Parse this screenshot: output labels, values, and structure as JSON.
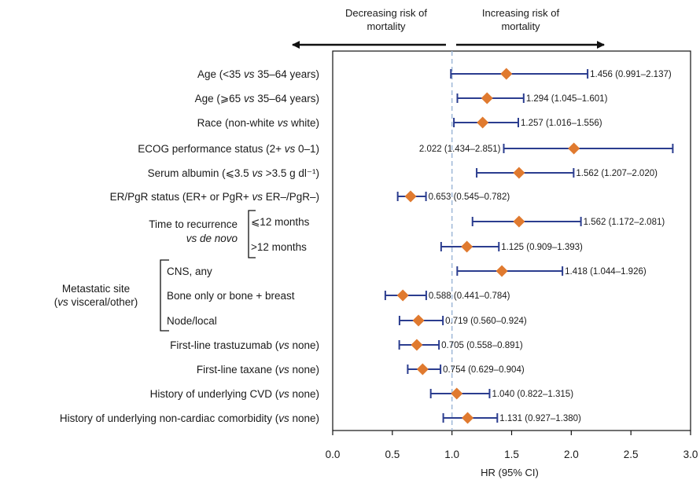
{
  "chart_data": {
    "type": "forest",
    "xlabel": "HR (95% CI)",
    "xlim": [
      0,
      3.0
    ],
    "xticks": [
      "0.0",
      "0.5",
      "1.0",
      "1.5",
      "2.0",
      "2.5",
      "3.0"
    ],
    "reference_line": 1.0,
    "direction_left": [
      "Decreasing risk of",
      "mortality"
    ],
    "direction_right": [
      "Increasing risk of",
      "mortality"
    ],
    "colors": {
      "marker": "#e07a2f",
      "ci_line": "#2b3d8f",
      "reference": "#9fb8d8"
    },
    "rows": [
      {
        "label": "Age (<35 ",
        "label_italic": "vs",
        "label_rest": " 35–64 years)",
        "hr": 1.456,
        "lo": 0.991,
        "hi": 2.137,
        "ci_text": "1.456 (0.991–2.137)"
      },
      {
        "label": "Age (⩾65 ",
        "label_italic": "vs",
        "label_rest": " 35–64 years)",
        "hr": 1.294,
        "lo": 1.045,
        "hi": 1.601,
        "ci_text": "1.294 (1.045–1.601)"
      },
      {
        "label": "Race (non-white ",
        "label_italic": "vs",
        "label_rest": " white)",
        "hr": 1.257,
        "lo": 1.016,
        "hi": 1.556,
        "ci_text": "1.257 (1.016–1.556)"
      },
      {
        "label": "ECOG performance status (2+ ",
        "label_italic": "vs",
        "label_rest": " 0–1)",
        "hr": 2.022,
        "lo": 1.434,
        "hi": 2.851,
        "ci_text": "2.022 (1.434–2.851)",
        "ci_text_side": "left"
      },
      {
        "label": "Serum albumin (⩽3.5 ",
        "label_italic": "vs",
        "label_rest": " >3.5 g dl⁻¹)",
        "hr": 1.562,
        "lo": 1.207,
        "hi": 2.02,
        "ci_text": "1.562 (1.207–2.020)"
      },
      {
        "label": "ER/PgR status (ER+ or PgR+ ",
        "label_italic": "vs",
        "label_rest": " ER–/PgR–)",
        "hr": 0.653,
        "lo": 0.545,
        "hi": 0.782,
        "ci_text": "0.653 (0.545–0.782)"
      },
      {
        "label": "⩽12 months",
        "group": 0,
        "hr": 1.562,
        "lo": 1.172,
        "hi": 2.081,
        "ci_text": "1.562 (1.172–2.081)"
      },
      {
        "label": ">12 months",
        "group": 0,
        "hr": 1.125,
        "lo": 0.909,
        "hi": 1.393,
        "ci_text": "1.125 (0.909–1.393)"
      },
      {
        "label": "CNS, any",
        "group": 1,
        "hr": 1.418,
        "lo": 1.044,
        "hi": 1.926,
        "ci_text": "1.418 (1.044–1.926)"
      },
      {
        "label": "Bone only or bone + breast",
        "group": 1,
        "hr": 0.588,
        "lo": 0.441,
        "hi": 0.784,
        "ci_text": "0.588 (0.441–0.784)"
      },
      {
        "label": "Node/local",
        "group": 1,
        "hr": 0.719,
        "lo": 0.56,
        "hi": 0.924,
        "ci_text": "0.719 (0.560–0.924)"
      },
      {
        "label": "First-line trastuzumab (",
        "label_italic": "vs",
        "label_rest": " none)",
        "hr": 0.705,
        "lo": 0.558,
        "hi": 0.891,
        "ci_text": "0.705 (0.558–0.891)"
      },
      {
        "label": "First-line taxane (",
        "label_italic": "vs",
        "label_rest": " none)",
        "hr": 0.754,
        "lo": 0.629,
        "hi": 0.904,
        "ci_text": "0.754 (0.629–0.904)"
      },
      {
        "label": "History of underlying CVD (",
        "label_italic": "vs",
        "label_rest": " none)",
        "hr": 1.04,
        "lo": 0.822,
        "hi": 1.315,
        "ci_text": "1.040 (0.822–1.315)"
      },
      {
        "label": "History of underlying non-cardiac comorbidity (",
        "label_italic": "vs",
        "label_rest": " none)",
        "hr": 1.131,
        "lo": 0.927,
        "hi": 1.38,
        "ci_text": "1.131 (0.927–1.380)"
      }
    ],
    "groups": [
      {
        "lines": [
          {
            "text": "Time to recurrence"
          },
          {
            "text": "vs de novo",
            "italic": true
          }
        ]
      },
      {
        "lines": [
          {
            "text": "Metastatic site"
          },
          {
            "text": "(",
            "italic_part": "vs",
            "rest": " visceral/other)"
          }
        ]
      }
    ]
  }
}
